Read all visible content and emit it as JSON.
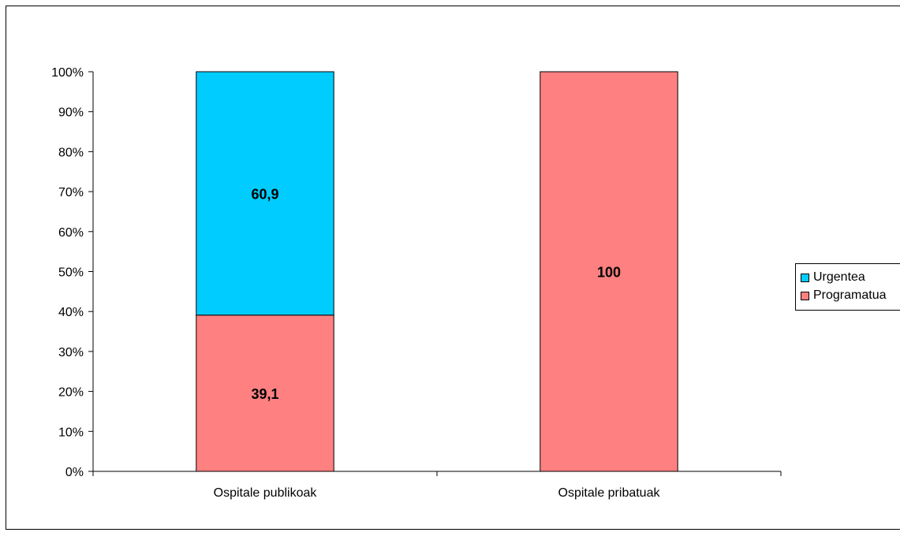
{
  "chart_data": {
    "type": "bar",
    "stacked": true,
    "percent_stacked": true,
    "categories": [
      "Ospitale publikoak",
      "Ospitale pribatuak"
    ],
    "series": [
      {
        "name": "Programatua",
        "values": [
          39.1,
          100
        ],
        "labels": [
          "39,1",
          "100"
        ],
        "color": "#FF8080"
      },
      {
        "name": "Urgentea",
        "values": [
          60.9,
          0
        ],
        "labels": [
          "60,9",
          ""
        ],
        "color": "#00CCFF"
      }
    ],
    "y_ticks": [
      "0%",
      "10%",
      "20%",
      "30%",
      "40%",
      "50%",
      "60%",
      "70%",
      "80%",
      "90%",
      "100%"
    ],
    "ylim": [
      0,
      100
    ],
    "grid": false,
    "legend": {
      "placement": "right",
      "entries": [
        {
          "label": "Urgentea",
          "color": "#00CCFF"
        },
        {
          "label": "Programatua",
          "color": "#FF8080"
        }
      ]
    }
  }
}
